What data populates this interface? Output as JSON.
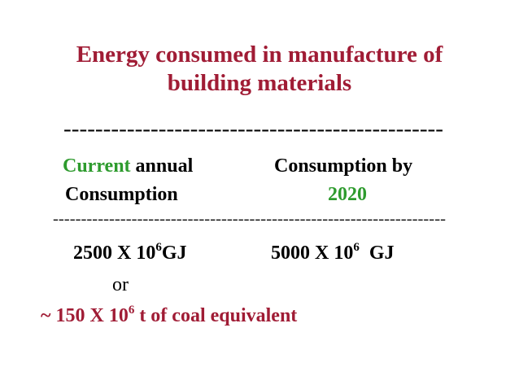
{
  "title": [
    "Energy consumed in manufacture of",
    "building materials"
  ],
  "dividers": [
    "------------------------------------------------",
    "----------------------------------------------------------------------"
  ],
  "columns": [
    {
      "header": [
        "Current",
        "annual",
        "Consumption"
      ],
      "value": [
        "2500 X 10",
        "6",
        "GJ"
      ]
    },
    {
      "header": [
        "Consumption by",
        "2020"
      ],
      "value": [
        "5000 X 10",
        "6",
        "GJ"
      ]
    }
  ],
  "conjunction": "or",
  "equivalent": [
    "~ 150 X 10",
    "6",
    "t of coal equivalent"
  ]
}
